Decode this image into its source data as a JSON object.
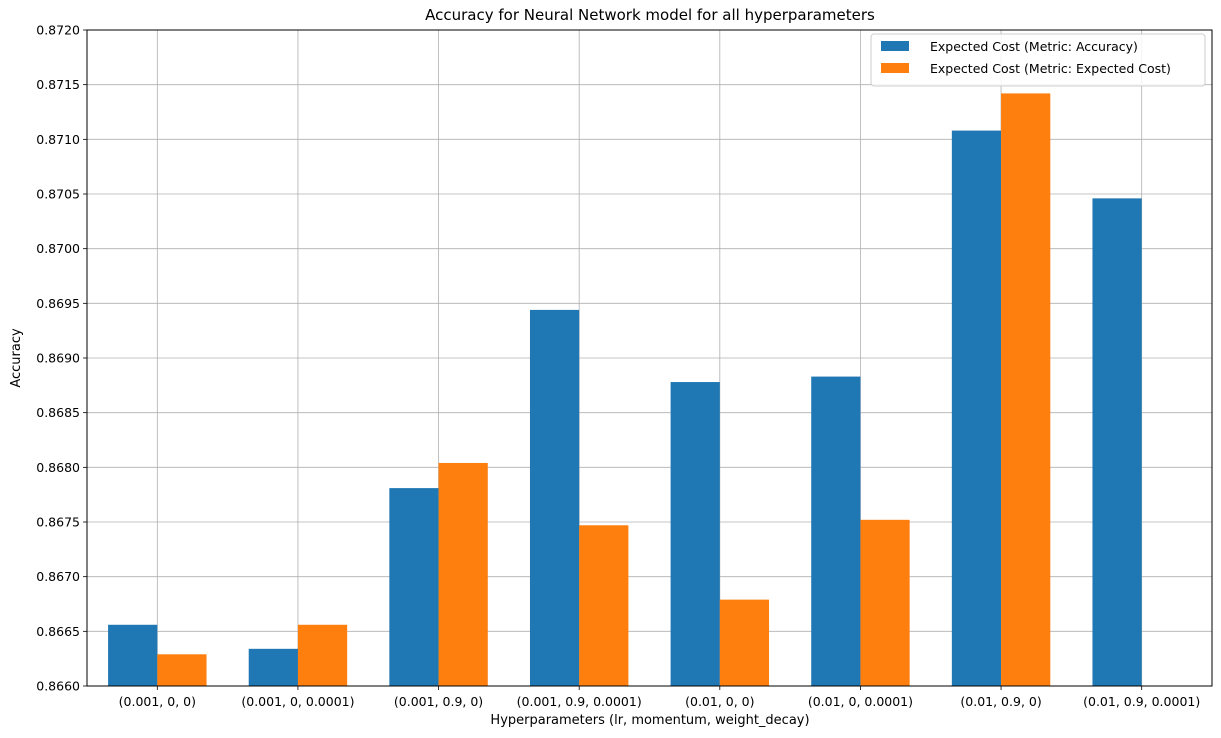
{
  "chart_data": {
    "type": "bar",
    "title": "Accuracy for Neural Network model for all hyperparameters",
    "xlabel": "Hyperparameters (lr, momentum, weight_decay)",
    "ylabel": "Accuracy",
    "ylim": [
      0.866,
      0.872
    ],
    "yticks": [
      "0.8660",
      "0.8665",
      "0.8670",
      "0.8675",
      "0.8680",
      "0.8685",
      "0.8690",
      "0.8695",
      "0.8700",
      "0.8705",
      "0.8710",
      "0.8715",
      "0.8720"
    ],
    "grid": true,
    "legend_position": "top-right",
    "categories": [
      "(0.001, 0, 0)",
      "(0.001, 0, 0.0001)",
      "(0.001, 0.9, 0)",
      "(0.001, 0.9, 0.0001)",
      "(0.01, 0, 0)",
      "(0.01, 0, 0.0001)",
      "(0.01, 0.9, 0)",
      "(0.01, 0.9, 0.0001)"
    ],
    "series": [
      {
        "name": "Expected Cost (Metric: Accuracy)",
        "color": "#1f77b4",
        "values": [
          0.86656,
          0.86634,
          0.86781,
          0.86944,
          0.86878,
          0.86883,
          0.87108,
          0.87046
        ]
      },
      {
        "name": "Expected Cost (Metric: Expected Cost)",
        "color": "#ff7f0e",
        "values": [
          0.86629,
          0.86656,
          0.86804,
          0.86747,
          0.86679,
          0.86752,
          0.87142,
          null
        ]
      }
    ]
  }
}
